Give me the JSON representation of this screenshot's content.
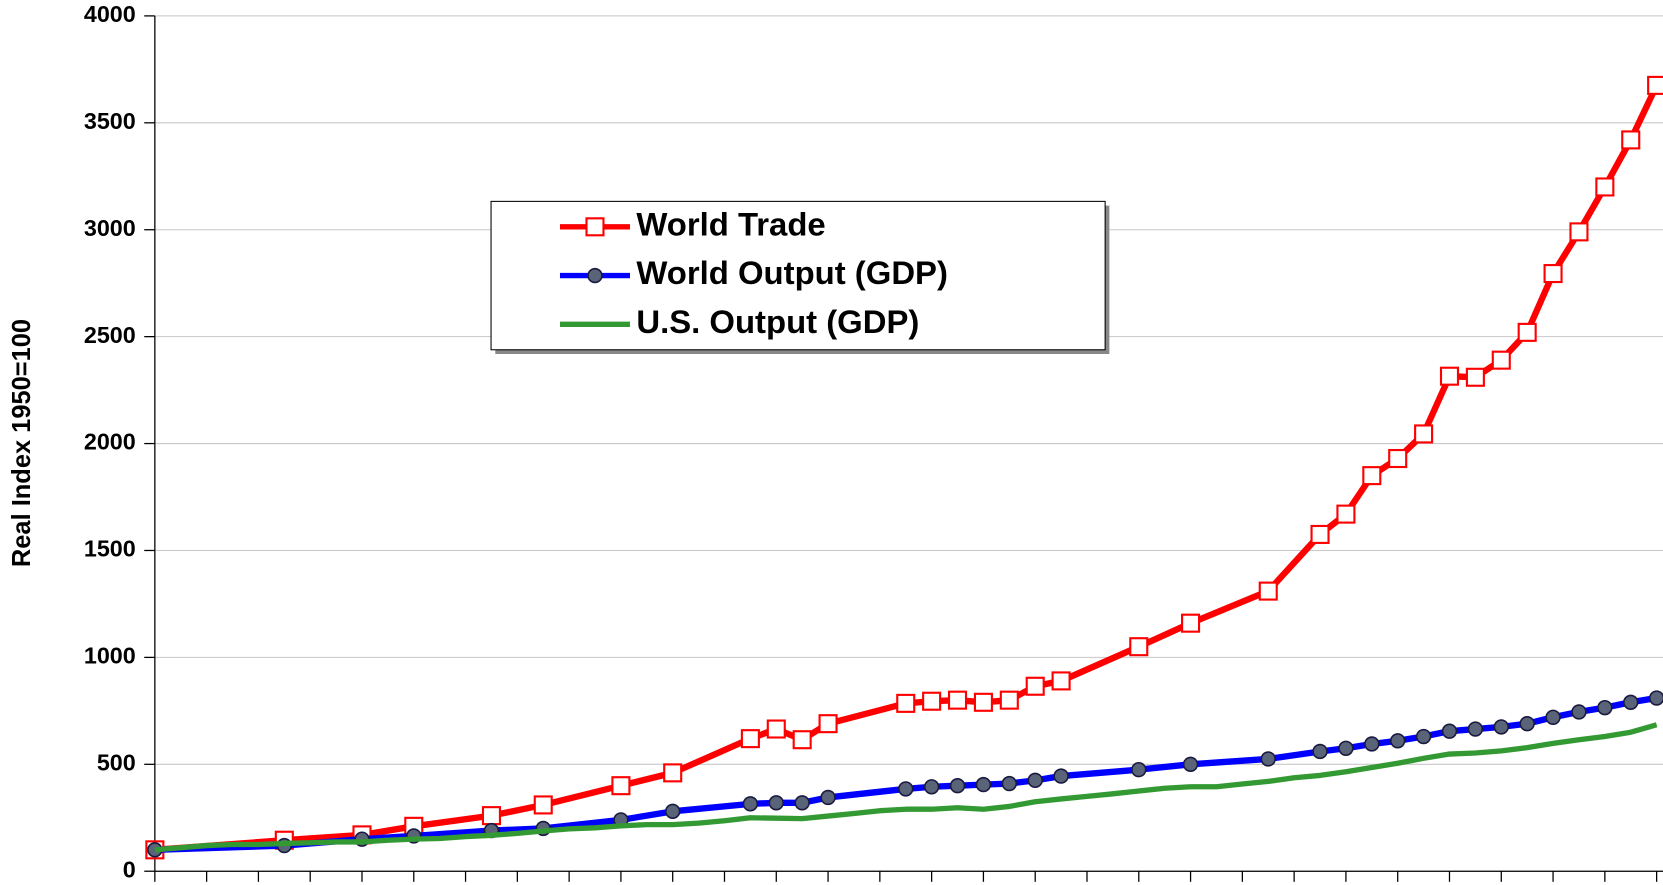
{
  "chart_data": {
    "type": "line",
    "ylabel": "Real Index 1950=100",
    "ylim": [
      0,
      4000
    ],
    "yticks": [
      0,
      500,
      1000,
      1500,
      2000,
      2500,
      3000,
      3500,
      4000
    ],
    "xlim": [
      0,
      58
    ],
    "xticks": [
      0,
      2,
      4,
      6,
      8,
      10,
      12,
      14,
      16,
      18,
      20,
      22,
      24,
      26,
      28,
      30,
      32,
      34,
      36,
      38,
      40,
      42,
      44,
      46,
      48,
      50,
      52,
      54,
      56,
      58
    ],
    "grid": true,
    "series": [
      {
        "name": "World Trade",
        "color": "#ff0000",
        "marker": "square",
        "x": [
          0,
          5,
          8,
          10,
          13,
          15,
          18,
          20,
          23,
          24,
          25,
          26,
          29,
          30,
          31,
          32,
          33,
          34,
          35,
          38,
          40,
          43,
          45,
          46,
          47,
          48,
          49,
          50,
          51,
          52,
          53,
          54,
          55,
          56,
          57,
          58
        ],
        "values": [
          100,
          145,
          170,
          210,
          260,
          310,
          400,
          460,
          620,
          665,
          615,
          690,
          785,
          795,
          800,
          790,
          800,
          865,
          890,
          1050,
          1160,
          1310,
          1575,
          1670,
          1850,
          1930,
          2045,
          2315,
          2310,
          2390,
          2520,
          2795,
          2990,
          3200,
          3420,
          3675
        ]
      },
      {
        "name": "World Output (GDP)",
        "color": "#0000ff",
        "marker": "circle",
        "x": [
          0,
          5,
          8,
          10,
          13,
          15,
          18,
          20,
          23,
          24,
          25,
          26,
          29,
          30,
          31,
          32,
          33,
          34,
          35,
          38,
          40,
          43,
          45,
          46,
          47,
          48,
          49,
          50,
          51,
          52,
          53,
          54,
          55,
          56,
          57,
          58
        ],
        "values": [
          100,
          120,
          150,
          165,
          190,
          200,
          240,
          280,
          315,
          320,
          320,
          345,
          385,
          395,
          400,
          405,
          410,
          425,
          445,
          475,
          500,
          525,
          560,
          575,
          595,
          610,
          630,
          655,
          665,
          675,
          690,
          720,
          745,
          765,
          790,
          810
        ]
      },
      {
        "name": "U.S. Output (GDP)",
        "color": "#339933",
        "marker": "none",
        "x": [
          0,
          1,
          2,
          3,
          4,
          5,
          6,
          7,
          8,
          9,
          10,
          11,
          12,
          13,
          14,
          15,
          16,
          17,
          18,
          19,
          20,
          21,
          22,
          23,
          24,
          25,
          26,
          27,
          28,
          29,
          30,
          31,
          32,
          33,
          34,
          35,
          36,
          37,
          38,
          39,
          40,
          41,
          42,
          43,
          44,
          45,
          46,
          47,
          48,
          49,
          50,
          51,
          52,
          53,
          54,
          55,
          56,
          57,
          58
        ],
        "values": [
          100,
          110,
          120,
          125,
          125,
          130,
          133,
          137,
          137,
          145,
          150,
          153,
          162,
          168,
          177,
          188,
          198,
          203,
          212,
          218,
          218,
          225,
          236,
          250,
          248,
          246,
          258,
          270,
          283,
          290,
          290,
          297,
          290,
          303,
          325,
          338,
          350,
          362,
          375,
          388,
          395,
          395,
          408,
          420,
          437,
          448,
          465,
          485,
          505,
          528,
          548,
          553,
          563,
          578,
          598,
          615,
          630,
          650,
          685
        ]
      }
    ]
  }
}
